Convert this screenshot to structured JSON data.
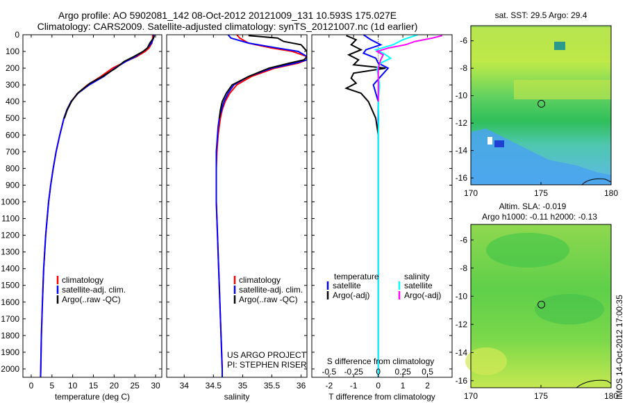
{
  "header": {
    "line1": "Argo profile: AO 5902081_142 08-Oct-2012 20121009_131 10.593S 175.027E",
    "line2": "Climatology: CARS2009. Satellite-adjusted climatology: synTS_20121007.nc (1d earlier)"
  },
  "colors": {
    "climatology": "#ff0000",
    "satellite": "#0000ff",
    "argo": "#000000",
    "sal_satellite": "#00ffff",
    "sal_argo": "#ff00ff"
  },
  "depth_axis": {
    "ticks": [
      0,
      100,
      200,
      300,
      400,
      500,
      600,
      700,
      800,
      900,
      1000,
      1100,
      1200,
      1300,
      1400,
      1500,
      1600,
      1700,
      1800,
      1900,
      2000
    ],
    "range": [
      0,
      2050
    ]
  },
  "chart_data": [
    {
      "type": "line",
      "panel": "temperature",
      "xlabel": "temperature (deg C)",
      "xticks": [
        0,
        5,
        10,
        15,
        20,
        25,
        30
      ],
      "xlim": [
        -2,
        31.5
      ],
      "legend": [
        "climatology",
        "satellite-adj. clim.",
        "Argo(..raw -QC)"
      ],
      "series": [
        {
          "name": "climatology",
          "color": "#ff0000",
          "depth": [
            0,
            20,
            50,
            80,
            100,
            130,
            160,
            200,
            250,
            300,
            350,
            400,
            450,
            500,
            600,
            700,
            800,
            900,
            1000,
            1200,
            1400,
            1600,
            1800,
            2000,
            2050
          ],
          "values": [
            29.3,
            29.3,
            29.1,
            28.4,
            27.5,
            25.5,
            22.8,
            19.6,
            16.8,
            13.6,
            11.2,
            9.6,
            8.6,
            7.9,
            6.9,
            6.0,
            5.3,
            4.7,
            4.2,
            3.5,
            3.0,
            2.7,
            2.45,
            2.3,
            2.25
          ]
        },
        {
          "name": "satellite-adj. clim.",
          "color": "#0000ff",
          "depth": [
            0,
            20,
            50,
            80,
            100,
            130,
            160,
            200,
            250,
            300,
            350,
            400,
            450,
            500,
            600,
            700,
            800,
            900,
            1000,
            1200,
            1400,
            1600,
            1800,
            2000,
            2050
          ],
          "values": [
            29.6,
            29.5,
            29.0,
            28.0,
            27.0,
            25.2,
            22.8,
            20.2,
            17.5,
            14.0,
            11.3,
            9.6,
            8.6,
            7.9,
            6.9,
            6.0,
            5.3,
            4.7,
            4.2,
            3.5,
            3.0,
            2.7,
            2.45,
            2.3,
            2.25
          ]
        },
        {
          "name": "Argo(..raw -QC)",
          "color": "#000000",
          "depth": [
            5,
            20,
            50,
            80,
            100,
            130,
            160,
            200,
            250,
            290,
            300,
            350,
            400,
            450,
            500
          ],
          "values": [
            29.7,
            29.5,
            28.6,
            28.0,
            27.0,
            24.8,
            22.4,
            20.4,
            17.2,
            14.2,
            13.7,
            11.2,
            9.7,
            8.7,
            8.0
          ]
        }
      ]
    },
    {
      "type": "line",
      "panel": "salinity",
      "xlabel": "salinity",
      "xticks": [
        34,
        34.5,
        35,
        35.5,
        36
      ],
      "xlim": [
        33.7,
        36.1
      ],
      "legend": [
        "climatology",
        "satellite-adj. clim.",
        "Argo(..raw -QC)"
      ],
      "annotations": [
        "US ARGO PROJECT",
        "PI: STEPHEN RISER"
      ],
      "series": [
        {
          "name": "climatology",
          "color": "#ff0000",
          "depth": [
            0,
            20,
            50,
            80,
            100,
            130,
            150,
            170,
            200,
            250,
            300,
            350,
            400,
            450,
            500,
            550,
            600,
            700,
            800,
            1000,
            1200,
            1400,
            1600,
            1800,
            2000,
            2050
          ],
          "values": [
            34.9,
            34.95,
            35.1,
            35.5,
            35.85,
            36.1,
            36.1,
            35.95,
            35.55,
            35.15,
            34.9,
            34.78,
            34.7,
            34.65,
            34.62,
            34.6,
            34.58,
            34.56,
            34.55,
            34.55,
            34.57,
            34.59,
            34.61,
            34.63,
            34.65,
            34.65
          ]
        },
        {
          "name": "satellite-adj. clim.",
          "color": "#0000ff",
          "depth": [
            0,
            20,
            50,
            80,
            100,
            130,
            150,
            170,
            200,
            250,
            300,
            350,
            400,
            450,
            500,
            550,
            600,
            700,
            800,
            1000,
            1200,
            1400,
            1600,
            1800,
            2000,
            2050
          ],
          "values": [
            34.75,
            34.8,
            35.1,
            35.6,
            35.95,
            36.1,
            36.1,
            35.9,
            35.5,
            35.1,
            34.85,
            34.75,
            34.68,
            34.64,
            34.6,
            34.58,
            34.57,
            34.55,
            34.55,
            34.55,
            34.57,
            34.59,
            34.61,
            34.63,
            34.65,
            34.65
          ]
        },
        {
          "name": "Argo(..raw -QC)",
          "color": "#000000",
          "depth": [
            5,
            20,
            40,
            60,
            80,
            100,
            130,
            150,
            170,
            200,
            250,
            300,
            350,
            400,
            450,
            500
          ],
          "values": [
            35.1,
            35.6,
            35.7,
            36.0,
            36.05,
            36.1,
            36.1,
            36.05,
            35.8,
            35.45,
            35.1,
            34.82,
            34.72,
            34.65,
            34.62,
            34.6
          ]
        }
      ]
    },
    {
      "type": "line",
      "panel": "difference",
      "xlabel": "T difference from climatology",
      "xlabel_top": "S difference from climatology",
      "xticks": [
        -2,
        -1,
        0,
        1,
        2
      ],
      "xticks_top": [
        "-0.5",
        "-0.25",
        "0",
        "0.25",
        "0.5"
      ],
      "xlim": [
        -2.7,
        3.0
      ],
      "legend_titles": [
        "temperature",
        "salinity"
      ],
      "legend": [
        "satellite",
        "Argo(-adj)",
        "satellite",
        "Argo(-adj)"
      ],
      "series": [
        {
          "name": "satellite",
          "color": "#0000ff",
          "depth": [
            0,
            30,
            60,
            90,
            110,
            140,
            170,
            200,
            250,
            300,
            400,
            500,
            600,
            800,
            1000,
            1500,
            2050
          ],
          "values": [
            -0.6,
            -0.3,
            0.1,
            -0.5,
            -0.6,
            -0.1,
            0.0,
            0.4,
            0.1,
            -0.2,
            0.0,
            0.0,
            0.0,
            0.0,
            0.0,
            0.0,
            0.0
          ]
        },
        {
          "name": "Argo(-adj)",
          "color": "#000000",
          "depth": [
            5,
            30,
            60,
            90,
            120,
            150,
            180,
            200,
            230,
            260,
            290,
            320,
            350,
            400,
            500,
            600
          ],
          "values": [
            -1.3,
            -0.9,
            -1.1,
            -0.7,
            -1.2,
            -0.8,
            -1.0,
            0.3,
            -1.0,
            -1.1,
            -0.9,
            -1.3,
            -0.7,
            -0.4,
            -0.1,
            0.0
          ]
        },
        {
          "name": "satellite",
          "color": "#00ffff",
          "depth": [
            0,
            30,
            60,
            90,
            110,
            140,
            170,
            200,
            250,
            300,
            400,
            500,
            600,
            800,
            1000,
            1500,
            2050
          ],
          "values": [
            1.6,
            1.0,
            0.6,
            -0.1,
            0.2,
            0.5,
            0.1,
            -0.05,
            0.0,
            0.05,
            0.0,
            0.02,
            0.0,
            0.0,
            0.0,
            0.0,
            0.0
          ]
        },
        {
          "name": "Argo(-adj)",
          "color": "#ff00ff",
          "depth": [
            5,
            20,
            40,
            60,
            80,
            100,
            120,
            150,
            200,
            300,
            400
          ],
          "values": [
            2.6,
            2.2,
            1.5,
            1.1,
            0.4,
            -0.05,
            0.2,
            0.1,
            0.0,
            0.0,
            0.0
          ]
        }
      ]
    },
    {
      "type": "heatmap",
      "panel": "sst-map",
      "title": "sat. SST: 29.5  Argo: 29.4",
      "xticks": [
        170,
        175,
        180
      ],
      "yticks": [
        -6,
        -8,
        -10,
        -12,
        -14,
        -16
      ],
      "xlim": [
        170,
        180
      ],
      "ylim": [
        -16.5,
        -4.9
      ],
      "marker": {
        "lon": 175.027,
        "lat": -10.593
      }
    },
    {
      "type": "heatmap",
      "panel": "sla-map",
      "title": "Altim. SLA: -0.019",
      "subtitle": "Argo h1000: -0.11  h2000: -0.13",
      "xticks": [
        170,
        175,
        180
      ],
      "yticks": [
        -6,
        -8,
        -10,
        -12,
        -14,
        -16
      ],
      "xlim": [
        170,
        180
      ],
      "ylim": [
        -16.5,
        -4.9
      ],
      "marker": {
        "lon": 175.027,
        "lat": -10.593
      }
    }
  ],
  "footer": {
    "stamp": "IMOS 14-Oct-2012 17:00:35"
  }
}
